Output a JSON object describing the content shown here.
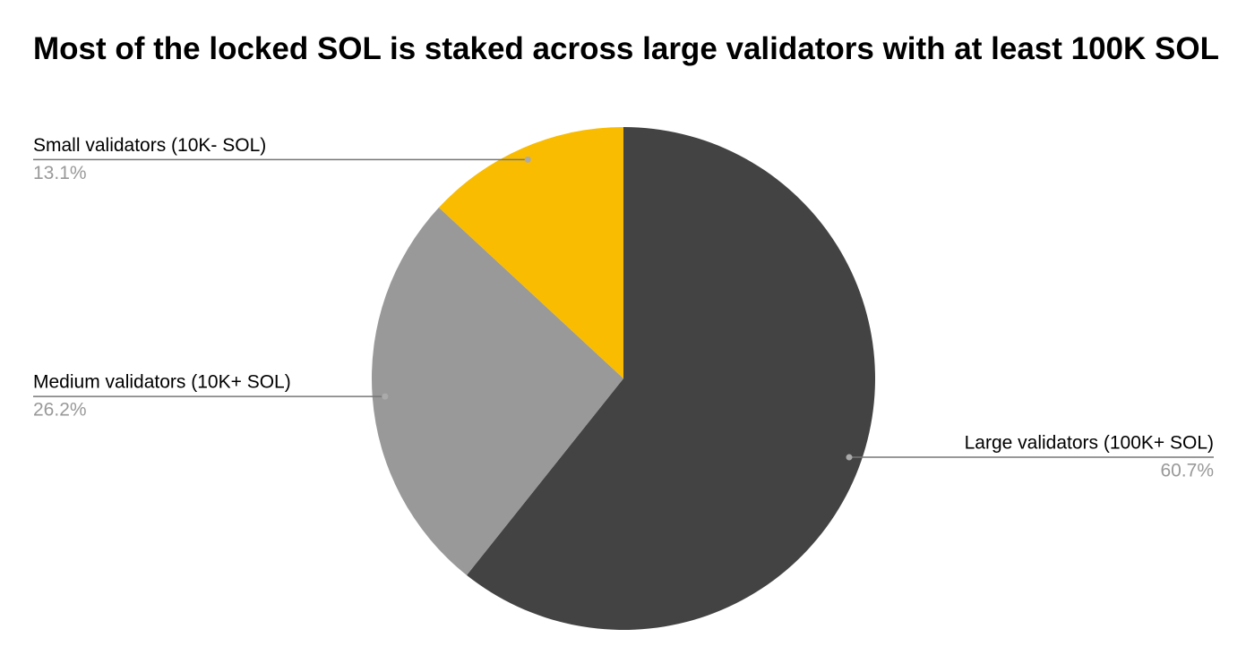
{
  "chart_data": {
    "type": "pie",
    "title": "Most of the locked SOL is staked across large validators with at least 100K SOL",
    "categories": [
      "Large validators (100K+ SOL)",
      "Medium validators (10K+ SOL)",
      "Small validators (10K- SOL)"
    ],
    "values": [
      60.7,
      26.2,
      13.1
    ],
    "value_labels": [
      "60.7%",
      "26.2%",
      "13.1%"
    ],
    "colors": [
      "#434343",
      "#999999",
      "#f9bc00"
    ]
  }
}
